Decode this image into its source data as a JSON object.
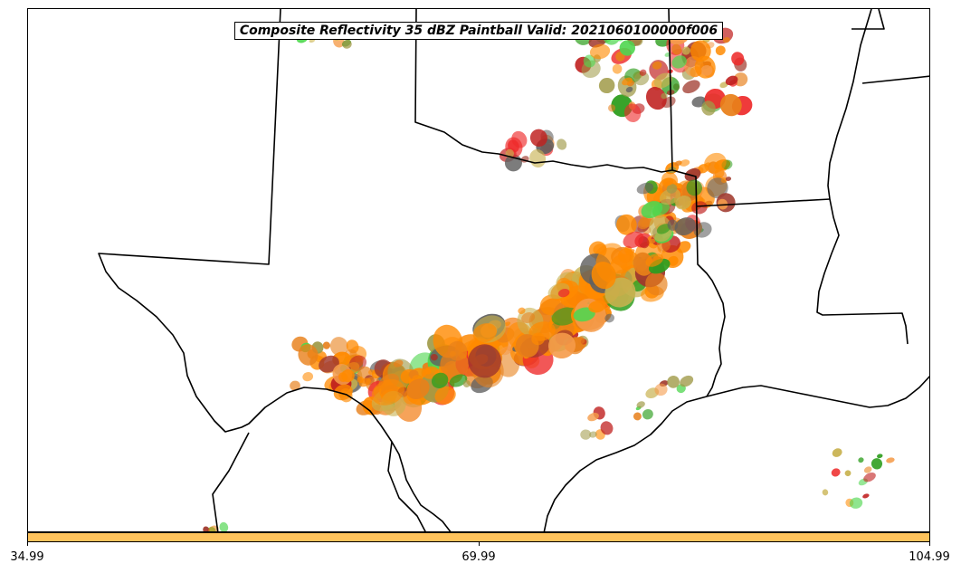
{
  "title": "Composite Reflectivity 35 dBZ Paintball Valid: 2021060100000f006",
  "colorbar": {
    "color": "#ffc35c",
    "ticks": [
      "34.99",
      "69.99",
      "104.99"
    ]
  },
  "paint_colors": [
    "#ff8a00",
    "#e8801a",
    "#f59b4a",
    "#ee2a2a",
    "#c0201f",
    "#2e9e1e",
    "#4fd64f",
    "#a09a48",
    "#606060",
    "#a0382c",
    "#c8b250"
  ]
}
